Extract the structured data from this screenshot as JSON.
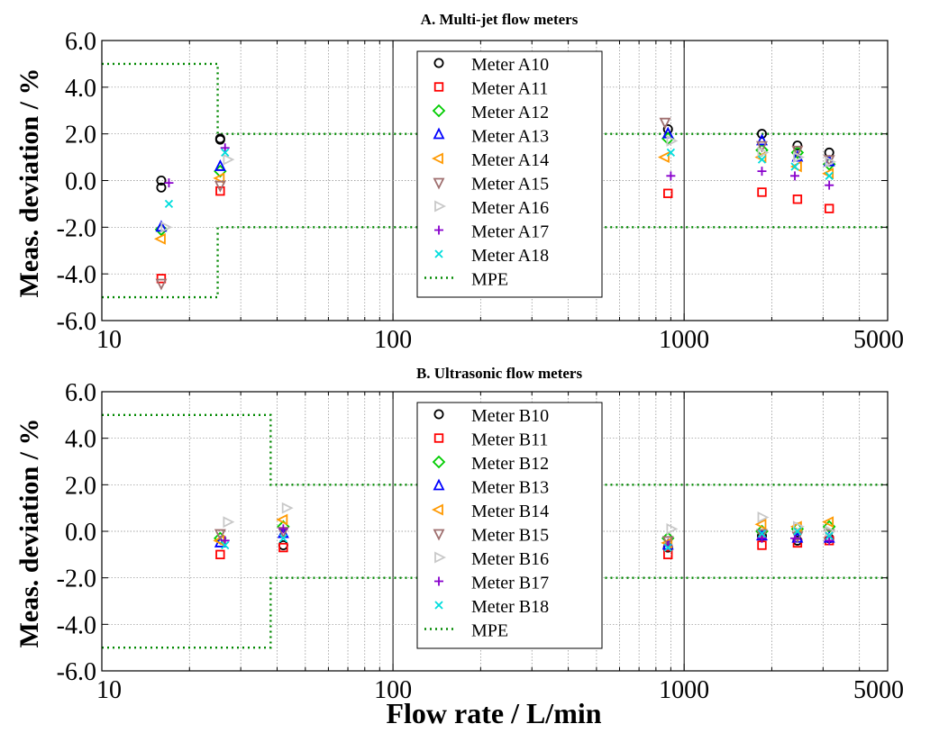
{
  "figure": {
    "xlabel": "Flow rate / L/min"
  },
  "chart_data": [
    {
      "type": "scatter",
      "title": "A. Multi-jet flow meters",
      "xlabel": "Flow rate / L/min",
      "ylabel": "Meas. deviation / %",
      "xscale": "log",
      "xlim": [
        10,
        5000
      ],
      "ylim": [
        -6,
        6
      ],
      "xticks": [
        10,
        100,
        1000,
        5000
      ],
      "xtick_labels": [
        "10",
        "100",
        "1000",
        "5000"
      ],
      "yticks": [
        -6,
        -4,
        -2,
        0,
        2,
        4,
        6
      ],
      "ytick_labels": [
        "-6.0",
        "-4.0",
        "-2.0",
        "0.0",
        "2.0",
        "4.0",
        "6.0"
      ],
      "grid": true,
      "legend_position": "top-center",
      "series": [
        {
          "name": "Meter A10",
          "marker": "circle",
          "color": "#000000",
          "points": [
            [
              16,
              0.0
            ],
            [
              16,
              -0.3
            ],
            [
              25.5,
              1.8
            ],
            [
              25.5,
              1.75
            ],
            [
              880,
              2.2
            ],
            [
              1850,
              2.0
            ],
            [
              2450,
              1.5
            ],
            [
              3150,
              1.2
            ]
          ]
        },
        {
          "name": "Meter A11",
          "marker": "square",
          "color": "#ff0000",
          "points": [
            [
              16,
              -4.2
            ],
            [
              25.5,
              -0.45
            ],
            [
              880,
              -0.55
            ],
            [
              1850,
              -0.5
            ],
            [
              2450,
              -0.8
            ],
            [
              3150,
              -1.2
            ]
          ]
        },
        {
          "name": "Meter A12",
          "marker": "diamond",
          "color": "#00cc00",
          "points": [
            [
              16,
              -2.1
            ],
            [
              25.5,
              0.4
            ],
            [
              880,
              1.8
            ],
            [
              1850,
              1.3
            ],
            [
              2450,
              1.2
            ],
            [
              3150,
              0.7
            ]
          ]
        },
        {
          "name": "Meter A13",
          "marker": "triangle-up",
          "color": "#0000ff",
          "points": [
            [
              16,
              -2.0
            ],
            [
              25.5,
              0.6
            ],
            [
              880,
              2.0
            ],
            [
              1850,
              1.7
            ],
            [
              2450,
              1.0
            ],
            [
              3150,
              0.8
            ]
          ]
        },
        {
          "name": "Meter A14",
          "marker": "triangle-left",
          "color": "#ff9900",
          "points": [
            [
              16,
              -2.5
            ],
            [
              25.5,
              0.1
            ],
            [
              860,
              1.0
            ],
            [
              1850,
              1.0
            ],
            [
              2450,
              0.6
            ],
            [
              3150,
              0.3
            ]
          ]
        },
        {
          "name": "Meter A15",
          "marker": "triangle-down",
          "color": "#a07070",
          "points": [
            [
              16,
              -4.4
            ],
            [
              25.5,
              -0.2
            ],
            [
              860,
              2.5
            ],
            [
              1850,
              1.5
            ],
            [
              2450,
              1.3
            ],
            [
              3150,
              0.9
            ]
          ]
        },
        {
          "name": "Meter A16",
          "marker": "triangle-right",
          "color": "#c8c8c8",
          "points": [
            [
              16.5,
              -2.0
            ],
            [
              27,
              0.9
            ],
            [
              900,
              1.7
            ],
            [
              1850,
              1.2
            ],
            [
              2450,
              1.0
            ],
            [
              3150,
              0.8
            ]
          ]
        },
        {
          "name": "Meter A17",
          "marker": "plus",
          "color": "#8800cc",
          "points": [
            [
              17,
              -0.1
            ],
            [
              26.5,
              1.4
            ],
            [
              900,
              0.2
            ],
            [
              1850,
              0.4
            ],
            [
              2400,
              0.2
            ],
            [
              3150,
              -0.2
            ]
          ]
        },
        {
          "name": "Meter A18",
          "marker": "x",
          "color": "#00dddd",
          "points": [
            [
              17,
              -1.0
            ],
            [
              26.5,
              1.2
            ],
            [
              900,
              1.2
            ],
            [
              1850,
              0.9
            ],
            [
              2400,
              0.6
            ],
            [
              3150,
              0.2
            ]
          ]
        }
      ],
      "mpe": {
        "name": "MPE",
        "color": "#008800",
        "upper": [
          [
            10,
            5.0
          ],
          [
            25,
            5.0
          ],
          [
            25,
            2.0
          ],
          [
            5000,
            2.0
          ]
        ],
        "lower": [
          [
            10,
            -5.0
          ],
          [
            25,
            -5.0
          ],
          [
            25,
            -2.0
          ],
          [
            5000,
            -2.0
          ]
        ]
      }
    },
    {
      "type": "scatter",
      "title": "B. Ultrasonic flow meters",
      "xlabel": "Flow rate / L/min",
      "ylabel": "Meas. deviation / %",
      "xscale": "log",
      "xlim": [
        10,
        5000
      ],
      "ylim": [
        -6,
        6
      ],
      "xticks": [
        10,
        100,
        1000,
        5000
      ],
      "xtick_labels": [
        "10",
        "100",
        "1000",
        "5000"
      ],
      "yticks": [
        -6,
        -4,
        -2,
        0,
        2,
        4,
        6
      ],
      "ytick_labels": [
        "-6.0",
        "-4.0",
        "-2.0",
        "0.0",
        "2.0",
        "4.0",
        "6.0"
      ],
      "grid": true,
      "legend_position": "top-center",
      "series": [
        {
          "name": "Meter B10",
          "marker": "circle",
          "color": "#000000",
          "points": [
            [
              42,
              -0.6
            ],
            [
              880,
              -0.7
            ],
            [
              1850,
              -0.2
            ],
            [
              2450,
              -0.4
            ],
            [
              3150,
              -0.3
            ]
          ]
        },
        {
          "name": "Meter B11",
          "marker": "square",
          "color": "#ff0000",
          "points": [
            [
              25.5,
              -1.0
            ],
            [
              42,
              -0.7
            ],
            [
              880,
              -1.0
            ],
            [
              1850,
              -0.6
            ],
            [
              2450,
              -0.5
            ],
            [
              3150,
              -0.4
            ]
          ]
        },
        {
          "name": "Meter B12",
          "marker": "diamond",
          "color": "#00cc00",
          "points": [
            [
              25.5,
              -0.3
            ],
            [
              42,
              0.2
            ],
            [
              880,
              -0.3
            ],
            [
              1850,
              0.0
            ],
            [
              2450,
              0.1
            ],
            [
              3150,
              0.2
            ]
          ]
        },
        {
          "name": "Meter B13",
          "marker": "triangle-up",
          "color": "#0000ff",
          "points": [
            [
              25.5,
              -0.5
            ],
            [
              42,
              -0.1
            ],
            [
              880,
              -0.6
            ],
            [
              1850,
              -0.2
            ],
            [
              2450,
              -0.3
            ],
            [
              3150,
              -0.3
            ]
          ]
        },
        {
          "name": "Meter B14",
          "marker": "triangle-left",
          "color": "#ff9900",
          "points": [
            [
              25.5,
              -0.4
            ],
            [
              42,
              0.5
            ],
            [
              880,
              -0.5
            ],
            [
              1850,
              0.3
            ],
            [
              2450,
              0.2
            ],
            [
              3150,
              0.4
            ]
          ]
        },
        {
          "name": "Meter B15",
          "marker": "triangle-down",
          "color": "#a07070",
          "points": [
            [
              25.5,
              -0.1
            ],
            [
              42,
              0.0
            ],
            [
              880,
              -0.4
            ],
            [
              1850,
              -0.1
            ],
            [
              2450,
              -0.2
            ],
            [
              3150,
              -0.1
            ]
          ]
        },
        {
          "name": "Meter B16",
          "marker": "triangle-right",
          "color": "#c8c8c8",
          "points": [
            [
              27,
              0.4
            ],
            [
              43,
              1.0
            ],
            [
              900,
              0.1
            ],
            [
              1850,
              0.6
            ],
            [
              2450,
              0.2
            ],
            [
              3150,
              0.0
            ]
          ]
        },
        {
          "name": "Meter B17",
          "marker": "plus",
          "color": "#8800cc",
          "points": [
            [
              26.5,
              -0.4
            ],
            [
              42,
              0.1
            ],
            [
              880,
              -0.6
            ],
            [
              1850,
              -0.3
            ],
            [
              2400,
              -0.3
            ],
            [
              3150,
              -0.4
            ]
          ]
        },
        {
          "name": "Meter B18",
          "marker": "x",
          "color": "#00dddd",
          "points": [
            [
              26.5,
              -0.6
            ],
            [
              42,
              -0.3
            ],
            [
              880,
              -0.7
            ],
            [
              1850,
              -0.1
            ],
            [
              2450,
              0.0
            ],
            [
              3150,
              -0.2
            ]
          ]
        }
      ],
      "mpe": {
        "name": "MPE",
        "color": "#008800",
        "upper": [
          [
            10,
            5.0
          ],
          [
            38,
            5.0
          ],
          [
            38,
            2.0
          ],
          [
            5000,
            2.0
          ]
        ],
        "lower": [
          [
            10,
            -5.0
          ],
          [
            38,
            -5.0
          ],
          [
            38,
            -2.0
          ],
          [
            5000,
            -2.0
          ]
        ]
      }
    }
  ]
}
